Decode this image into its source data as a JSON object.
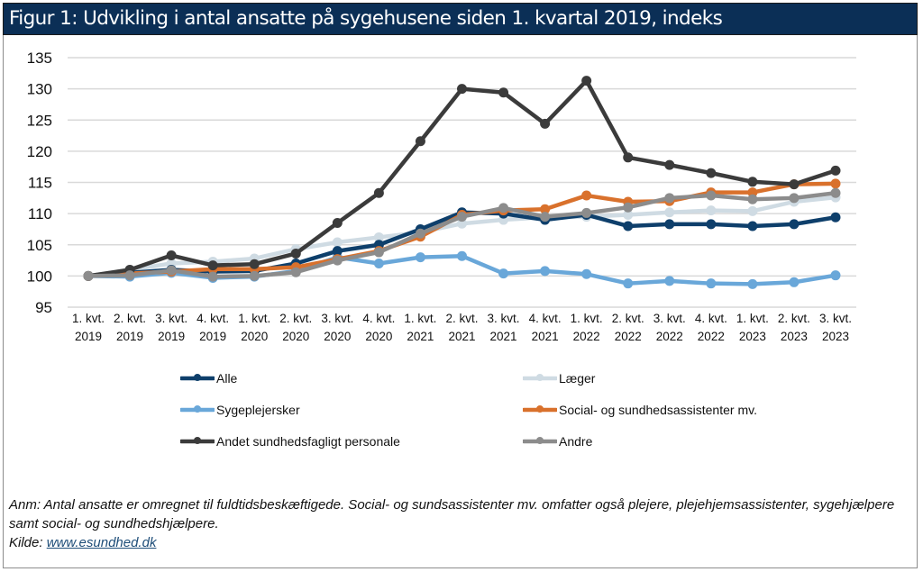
{
  "title": "Figur 1: Udvikling i antal ansatte på sygehusene siden 1. kvartal 2019, indeks",
  "chart_data": {
    "type": "line",
    "title": "Figur 1: Udvikling i antal ansatte på sygehusene siden 1. kvartal 2019, indeks",
    "xlabel": "",
    "ylabel": "",
    "ylim": [
      95,
      135
    ],
    "yticks": [
      95,
      100,
      105,
      110,
      115,
      120,
      125,
      130,
      135
    ],
    "grid": true,
    "legend_placement": "bottom",
    "categories": [
      [
        "1. kvt.",
        "2019"
      ],
      [
        "2. kvt.",
        "2019"
      ],
      [
        "3. kvt.",
        "2019"
      ],
      [
        "4. kvt.",
        "2019"
      ],
      [
        "1. kvt.",
        "2020"
      ],
      [
        "2. kvt.",
        "2020"
      ],
      [
        "3. kvt.",
        "2020"
      ],
      [
        "4. kvt.",
        "2020"
      ],
      [
        "1. kvt.",
        "2021"
      ],
      [
        "2. kvt.",
        "2021"
      ],
      [
        "3. kvt.",
        "2021"
      ],
      [
        "4. kvt.",
        "2021"
      ],
      [
        "1. kvt.",
        "2022"
      ],
      [
        "2. kvt.",
        "2022"
      ],
      [
        "3. kvt.",
        "2022"
      ],
      [
        "4. kvt.",
        "2022"
      ],
      [
        "1. kvt.",
        "2023"
      ],
      [
        "2. kvt.",
        "2023"
      ],
      [
        "3. kvt.",
        "2023"
      ]
    ],
    "series": [
      {
        "name": "Læger",
        "color": "#cfdbe3",
        "values": [
          100,
          101.0,
          102.0,
          102.3,
          102.8,
          104.3,
          105.4,
          106.2,
          107.0,
          108.4,
          109.0,
          109.4,
          109.5,
          109.8,
          110.2,
          110.5,
          110.4,
          111.9,
          112.6
        ]
      },
      {
        "name": "Sygeplejersker",
        "color": "#69a7d9",
        "values": [
          100,
          99.9,
          100.5,
          99.7,
          99.9,
          100.8,
          103.0,
          102.0,
          103.0,
          103.2,
          100.4,
          100.8,
          100.3,
          98.8,
          99.2,
          98.8,
          98.7,
          99.0,
          100.1
        ]
      },
      {
        "name": "Alle",
        "color": "#0e3f6b",
        "values": [
          100,
          100.5,
          101.0,
          100.7,
          100.8,
          102.0,
          104.0,
          105.0,
          107.5,
          110.2,
          110.0,
          109.0,
          109.8,
          108.0,
          108.3,
          108.3,
          108.0,
          108.3,
          109.4
        ]
      },
      {
        "name": "Social- og sundhedsassistenter mv.",
        "color": "#d9712c",
        "values": [
          100,
          100.4,
          100.7,
          101.1,
          101.1,
          101.4,
          102.7,
          104.0,
          106.3,
          109.8,
          110.5,
          110.7,
          112.9,
          111.9,
          112.0,
          113.4,
          113.4,
          114.7,
          114.8
        ]
      },
      {
        "name": "Andet sundhedsfagligt personale",
        "color": "#3b3b3b",
        "values": [
          100,
          101.0,
          103.3,
          101.7,
          101.9,
          103.6,
          108.5,
          113.3,
          121.6,
          130.0,
          129.4,
          124.4,
          131.3,
          119.0,
          117.8,
          116.5,
          115.1,
          114.7,
          116.9
        ]
      },
      {
        "name": "Andre",
        "color": "#8c8c8c",
        "values": [
          100,
          100.1,
          100.9,
          99.9,
          100.0,
          100.6,
          102.5,
          103.8,
          106.8,
          109.5,
          110.9,
          109.5,
          110.1,
          111.0,
          112.5,
          112.9,
          112.3,
          112.5,
          113.3
        ]
      }
    ],
    "legend": [
      {
        "name": "Alle",
        "color": "#0e3f6b"
      },
      {
        "name": "Læger",
        "color": "#cfdbe3"
      },
      {
        "name": "Sygeplejersker",
        "color": "#69a7d9"
      },
      {
        "name": "Social- og sundhedsassistenter mv.",
        "color": "#d9712c"
      },
      {
        "name": "Andet sundhedsfagligt personale",
        "color": "#3b3b3b"
      },
      {
        "name": "Andre",
        "color": "#8c8c8c"
      }
    ]
  },
  "note": {
    "anm": "Anm: Antal ansatte er omregnet til fuldtidsbeskæftigede. Social- og sundsassistenter mv. omfatter også plejere, plejehjemsassistenter, sygehjælpere samt social- og sundhedshjælpere.",
    "kilde_label": "Kilde: ",
    "kilde_link": "www.esundhed.dk"
  },
  "colors": {
    "title_bar": "#0b2f56",
    "grid": "#d9d9d9"
  }
}
